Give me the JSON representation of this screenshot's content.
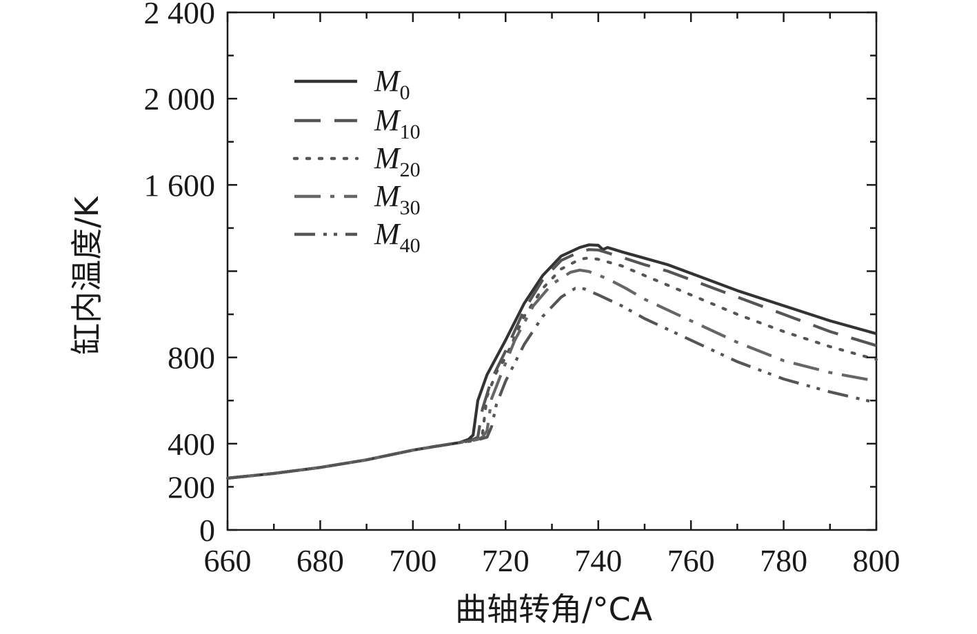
{
  "chart_data": {
    "type": "line",
    "title": "",
    "xlabel": "曲轴转角/°CA",
    "ylabel": "缸内温度/K",
    "xlim": [
      660,
      800
    ],
    "ylim": [
      0,
      2400
    ],
    "x_ticks": [
      660,
      680,
      700,
      720,
      740,
      760,
      780,
      800
    ],
    "x_tick_labels": [
      "660",
      "680",
      "700",
      "720",
      "740",
      "760",
      "780",
      "800"
    ],
    "y_ticks": [
      0,
      400,
      800,
      1600,
      2000,
      2400
    ],
    "y_tick_labels": [
      "0",
      "400",
      "800",
      "1 600",
      "2 000",
      "2 400"
    ],
    "y_tick_label_200": "200",
    "grid": false,
    "legend_position": "top-left",
    "series": [
      {
        "name": "M0",
        "label_main": "M",
        "label_sub": "0",
        "color": "#333333",
        "dash": "solid",
        "points": [
          [
            660,
            240
          ],
          [
            670,
            262
          ],
          [
            680,
            290
          ],
          [
            690,
            325
          ],
          [
            700,
            370
          ],
          [
            705,
            388
          ],
          [
            710,
            405
          ],
          [
            712,
            420
          ],
          [
            713,
            440
          ],
          [
            714,
            600
          ],
          [
            716,
            720
          ],
          [
            720,
            880
          ],
          [
            724,
            1050
          ],
          [
            728,
            1180
          ],
          [
            732,
            1270
          ],
          [
            736,
            1310
          ],
          [
            738,
            1322
          ],
          [
            740,
            1320
          ],
          [
            741,
            1300
          ],
          [
            742,
            1310
          ],
          [
            745,
            1290
          ],
          [
            750,
            1260
          ],
          [
            755,
            1230
          ],
          [
            760,
            1190
          ],
          [
            770,
            1110
          ],
          [
            780,
            1040
          ],
          [
            790,
            970
          ],
          [
            800,
            910
          ]
        ]
      },
      {
        "name": "M10",
        "label_main": "M",
        "label_sub": "10",
        "color": "#555555",
        "dash": "38,20",
        "points": [
          [
            660,
            240
          ],
          [
            670,
            262
          ],
          [
            680,
            290
          ],
          [
            690,
            325
          ],
          [
            700,
            370
          ],
          [
            705,
            388
          ],
          [
            710,
            405
          ],
          [
            712,
            412
          ],
          [
            713,
            420
          ],
          [
            714,
            430
          ],
          [
            715,
            560
          ],
          [
            717,
            700
          ],
          [
            720,
            830
          ],
          [
            724,
            1020
          ],
          [
            728,
            1160
          ],
          [
            732,
            1250
          ],
          [
            736,
            1290
          ],
          [
            738,
            1300
          ],
          [
            740,
            1298
          ],
          [
            742,
            1285
          ],
          [
            745,
            1265
          ],
          [
            750,
            1230
          ],
          [
            755,
            1200
          ],
          [
            760,
            1160
          ],
          [
            770,
            1080
          ],
          [
            780,
            1000
          ],
          [
            790,
            920
          ],
          [
            800,
            855
          ]
        ]
      },
      {
        "name": "M20",
        "label_main": "M",
        "label_sub": "20",
        "color": "#555555",
        "dash": "4,14",
        "points": [
          [
            660,
            240
          ],
          [
            670,
            262
          ],
          [
            680,
            290
          ],
          [
            690,
            325
          ],
          [
            700,
            370
          ],
          [
            705,
            388
          ],
          [
            710,
            405
          ],
          [
            713,
            420
          ],
          [
            714,
            425
          ],
          [
            715,
            445
          ],
          [
            716,
            620
          ],
          [
            718,
            730
          ],
          [
            720,
            800
          ],
          [
            724,
            990
          ],
          [
            728,
            1120
          ],
          [
            732,
            1210
          ],
          [
            736,
            1255
          ],
          [
            738,
            1262
          ],
          [
            740,
            1255
          ],
          [
            745,
            1225
          ],
          [
            750,
            1180
          ],
          [
            760,
            1090
          ],
          [
            770,
            1000
          ],
          [
            780,
            920
          ],
          [
            790,
            850
          ],
          [
            800,
            790
          ]
        ]
      },
      {
        "name": "M30",
        "label_main": "M",
        "label_sub": "30",
        "color": "#666666",
        "dash": "38,14,6,14",
        "points": [
          [
            660,
            240
          ],
          [
            670,
            262
          ],
          [
            680,
            290
          ],
          [
            690,
            325
          ],
          [
            700,
            370
          ],
          [
            705,
            388
          ],
          [
            710,
            405
          ],
          [
            713,
            415
          ],
          [
            714,
            420
          ],
          [
            715,
            430
          ],
          [
            716,
            460
          ],
          [
            717,
            610
          ],
          [
            719,
            720
          ],
          [
            722,
            880
          ],
          [
            726,
            1040
          ],
          [
            730,
            1140
          ],
          [
            734,
            1195
          ],
          [
            736,
            1205
          ],
          [
            738,
            1198
          ],
          [
            742,
            1165
          ],
          [
            746,
            1120
          ],
          [
            750,
            1070
          ],
          [
            760,
            970
          ],
          [
            770,
            870
          ],
          [
            780,
            785
          ],
          [
            790,
            730
          ],
          [
            800,
            690
          ]
        ]
      },
      {
        "name": "M40",
        "label_main": "M",
        "label_sub": "40",
        "color": "#555555",
        "dash": "30,12,5,10,5,12",
        "points": [
          [
            660,
            240
          ],
          [
            670,
            262
          ],
          [
            680,
            290
          ],
          [
            690,
            325
          ],
          [
            700,
            370
          ],
          [
            705,
            388
          ],
          [
            710,
            405
          ],
          [
            712,
            410
          ],
          [
            714,
            418
          ],
          [
            716,
            430
          ],
          [
            717,
            480
          ],
          [
            718,
            580
          ],
          [
            720,
            690
          ],
          [
            724,
            860
          ],
          [
            728,
            990
          ],
          [
            732,
            1080
          ],
          [
            735,
            1120
          ],
          [
            737,
            1118
          ],
          [
            740,
            1090
          ],
          [
            745,
            1040
          ],
          [
            750,
            980
          ],
          [
            760,
            880
          ],
          [
            770,
            780
          ],
          [
            780,
            700
          ],
          [
            790,
            640
          ],
          [
            800,
            590
          ]
        ]
      }
    ]
  }
}
